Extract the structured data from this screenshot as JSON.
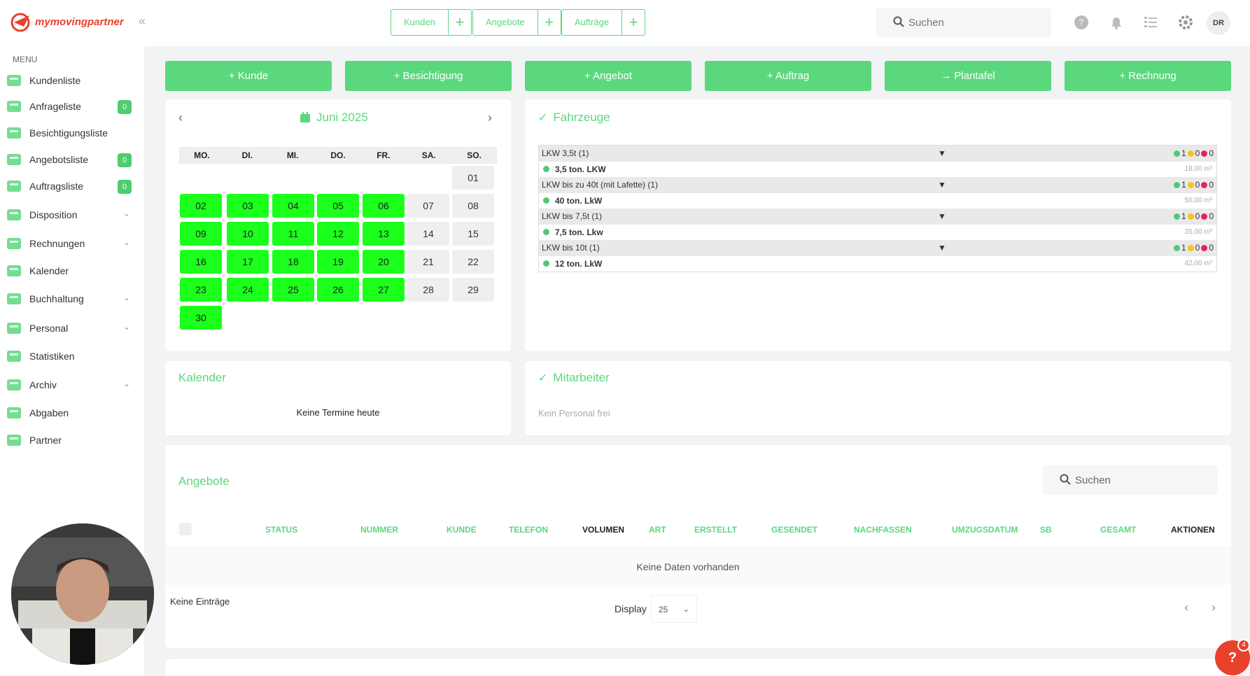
{
  "brand": {
    "name_a": "my",
    "name_b": "movingpartner"
  },
  "topbar": {
    "quick": [
      {
        "label": "Kunden"
      },
      {
        "label": "Angebote"
      },
      {
        "label": "Aufträge"
      }
    ],
    "plus": "+",
    "search_placeholder": "Suchen",
    "avatar_initials": "DR",
    "collapse": "«"
  },
  "sidebar": {
    "menu_label": "MENU",
    "items": [
      {
        "label": "Kundenliste",
        "icon": "customers-icon"
      },
      {
        "label": "Anfrageliste",
        "icon": "inbox-icon",
        "badge": "0"
      },
      {
        "label": "Besichtigungsliste",
        "icon": "house-icon"
      },
      {
        "label": "Angebotsliste",
        "icon": "document-icon",
        "badge": "0"
      },
      {
        "label": "Auftragsliste",
        "icon": "document-icon",
        "badge": "0"
      },
      {
        "label": "Disposition",
        "icon": "gantt-icon",
        "chevron": "⌄"
      },
      {
        "label": "Rechnungen",
        "icon": "cash-icon",
        "chevron": "⌄"
      },
      {
        "label": "Kalender",
        "icon": "calendar-icon"
      },
      {
        "label": "Buchhaltung",
        "icon": "grid-icon",
        "chevron": "⌄"
      },
      {
        "label": "Personal",
        "icon": "person-icon",
        "chevron": "⌄"
      },
      {
        "label": "Statistiken",
        "icon": "bars-icon"
      },
      {
        "label": "Archiv",
        "icon": "archive-icon",
        "chevron": "⌄"
      },
      {
        "label": "Abgaben",
        "icon": "network-icon"
      },
      {
        "label": "Partner",
        "icon": "handshake-icon"
      }
    ]
  },
  "actions": [
    {
      "label": "+ Kunde"
    },
    {
      "label": "+ Besichtigung"
    },
    {
      "label": "+ Angebot"
    },
    {
      "label": "+ Auftrag"
    },
    {
      "label": "→ Plantafel"
    },
    {
      "label": "+ Rechnung"
    }
  ],
  "calendar": {
    "month": "Juni 2025",
    "prev": "‹",
    "next": "›",
    "weekdays": [
      "MO.",
      "DI.",
      "MI.",
      "DO.",
      "FR.",
      "SA.",
      "SO."
    ],
    "days": [
      {
        "d": "01",
        "on": false
      },
      {
        "d": "02",
        "on": true
      },
      {
        "d": "03",
        "on": true
      },
      {
        "d": "04",
        "on": true
      },
      {
        "d": "05",
        "on": true
      },
      {
        "d": "06",
        "on": true
      },
      {
        "d": "07",
        "on": false
      },
      {
        "d": "08",
        "on": false
      },
      {
        "d": "09",
        "on": true
      },
      {
        "d": "10",
        "on": true
      },
      {
        "d": "11",
        "on": true
      },
      {
        "d": "12",
        "on": true
      },
      {
        "d": "13",
        "on": true
      },
      {
        "d": "14",
        "on": false
      },
      {
        "d": "15",
        "on": false
      },
      {
        "d": "16",
        "on": true
      },
      {
        "d": "17",
        "on": true
      },
      {
        "d": "18",
        "on": true
      },
      {
        "d": "19",
        "on": true
      },
      {
        "d": "20",
        "on": true
      },
      {
        "d": "21",
        "on": false
      },
      {
        "d": "22",
        "on": false
      },
      {
        "d": "23",
        "on": true
      },
      {
        "d": "24",
        "on": true
      },
      {
        "d": "25",
        "on": true
      },
      {
        "d": "26",
        "on": true
      },
      {
        "d": "27",
        "on": true
      },
      {
        "d": "28",
        "on": false
      },
      {
        "d": "29",
        "on": false
      },
      {
        "d": "30",
        "on": true
      }
    ]
  },
  "vehicles": {
    "title": "Fahrzeuge",
    "groups": [
      {
        "group": "LKW 3,5t (1)",
        "item": "3,5 ton. LKW",
        "volume": "18,00 m³",
        "green": "1",
        "yellow": "0",
        "red": "0"
      },
      {
        "group": "LKW bis zu 40t (mit Lafette) (1)",
        "item": "40 ton. LkW",
        "volume": "50,00 m³",
        "green": "1",
        "yellow": "0",
        "red": "0"
      },
      {
        "group": "LKW bis 7,5t (1)",
        "item": "7,5 ton. Lkw",
        "volume": "35,00 m³",
        "green": "1",
        "yellow": "0",
        "red": "0"
      },
      {
        "group": "LKW bis 10t (1)",
        "item": "12 ton. LkW",
        "volume": "42,00 m³",
        "green": "1",
        "yellow": "0",
        "red": "0"
      }
    ],
    "arrow": "▼"
  },
  "kalender_card": {
    "title": "Kalender",
    "empty": "Keine Termine heute"
  },
  "staff": {
    "title": "Mitarbeiter",
    "empty": "Kein Personal frei"
  },
  "offers": {
    "title": "Angebote",
    "search_placeholder": "Suchen",
    "columns": [
      "STATUS",
      "NUMMER",
      "KUNDE",
      "TELEFON",
      "VOLUMEN",
      "ART",
      "ERSTELLT",
      "GESENDET",
      "NACHFASSEN",
      "UMZUGSDATUM",
      "SB",
      "GESAMT",
      "AKTIONEN"
    ],
    "no_data": "Keine Daten vorhanden",
    "no_entries": "Keine Einträge",
    "display_label": "Display",
    "page_size": "25",
    "prev": "‹",
    "next": "›"
  },
  "help": {
    "label": "?",
    "badge": "4"
  },
  "colors": {
    "accent": "#5bd87d",
    "day_on": "#1cff1c",
    "brand": "#e8412c"
  }
}
